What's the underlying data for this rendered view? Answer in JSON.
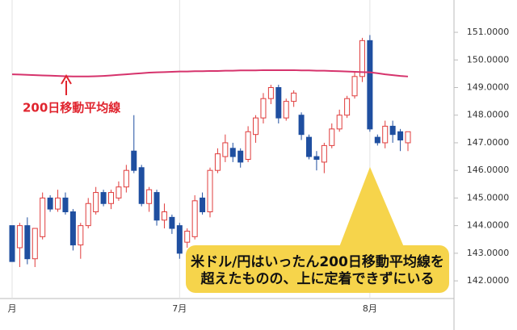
{
  "chart_data": {
    "type": "candlestick",
    "categories": [
      "月",
      null,
      null,
      null,
      null,
      null,
      null,
      null,
      null,
      null,
      null,
      null,
      null,
      null,
      null,
      null,
      null,
      null,
      null,
      null,
      null,
      null,
      "7月",
      null,
      null,
      null,
      null,
      null,
      null,
      null,
      null,
      null,
      null,
      null,
      null,
      null,
      null,
      null,
      null,
      null,
      null,
      null,
      null,
      null,
      null,
      null,
      null,
      "8月",
      null,
      null,
      null,
      null,
      null
    ],
    "open": [
      144.0,
      143.2,
      144.0,
      142.8,
      143.6,
      145.0,
      144.6,
      145.0,
      144.5,
      143.3,
      144.0,
      144.5,
      145.2,
      144.8,
      145.0,
      145.4,
      146.7,
      146.1,
      144.8,
      145.2,
      144.2,
      144.3,
      144.0,
      143.4,
      143.6,
      145.0,
      144.5,
      146.0,
      146.5,
      146.8,
      146.7,
      146.4,
      147.3,
      147.9,
      148.6,
      149.0,
      147.9,
      148.5,
      148.0,
      147.2,
      146.5,
      146.3,
      146.9,
      147.5,
      148.0,
      148.7,
      149.4,
      150.7,
      147.2,
      147.0,
      147.6,
      147.4,
      147.0
    ],
    "high": [
      144.0,
      144.1,
      144.3,
      143.9,
      145.2,
      145.1,
      145.3,
      145.2,
      144.6,
      144.1,
      145.0,
      145.4,
      145.3,
      145.3,
      145.6,
      146.2,
      148.0,
      146.2,
      145.4,
      145.3,
      144.8,
      144.4,
      144.1,
      143.9,
      145.1,
      145.2,
      146.1,
      146.8,
      147.3,
      147.0,
      146.8,
      147.6,
      148.0,
      148.8,
      149.1,
      149.1,
      148.6,
      148.9,
      148.1,
      147.3,
      146.7,
      147.0,
      147.7,
      148.2,
      148.7,
      149.6,
      150.8,
      150.9,
      147.3,
      147.8,
      147.8,
      147.5,
      147.4
    ],
    "low": [
      142.7,
      142.5,
      142.6,
      142.5,
      143.5,
      144.5,
      144.5,
      144.4,
      143.1,
      142.8,
      143.9,
      144.4,
      144.7,
      144.6,
      144.9,
      145.2,
      145.9,
      144.7,
      144.5,
      144.0,
      143.9,
      143.7,
      142.8,
      143.2,
      143.5,
      144.4,
      144.3,
      145.9,
      146.3,
      146.3,
      146.1,
      146.3,
      147.0,
      147.7,
      148.4,
      147.7,
      147.8,
      148.3,
      147.1,
      146.4,
      146.0,
      145.9,
      146.8,
      147.4,
      147.9,
      148.6,
      149.2,
      147.4,
      146.9,
      146.8,
      147.0,
      146.7,
      146.7
    ],
    "close": [
      142.7,
      144.0,
      142.8,
      143.9,
      145.0,
      144.6,
      145.0,
      144.5,
      143.3,
      144.0,
      144.8,
      145.2,
      144.8,
      145.2,
      145.4,
      146.0,
      146.0,
      144.8,
      145.3,
      144.2,
      144.5,
      143.9,
      143.0,
      143.8,
      144.9,
      144.5,
      146.0,
      146.6,
      147.0,
      146.5,
      146.3,
      147.4,
      147.9,
      148.6,
      149.0,
      147.9,
      148.5,
      148.8,
      147.3,
      146.5,
      146.4,
      146.9,
      147.5,
      148.0,
      148.6,
      149.4,
      150.7,
      147.5,
      147.0,
      147.6,
      147.3,
      147.1,
      147.4
    ],
    "up_color": "#e03c3c",
    "down_color": "#1f4fa0",
    "series": [
      {
        "name": "200日移動平均線",
        "color": "#d6336c",
        "values": [
          149.48,
          149.47,
          149.46,
          149.45,
          149.44,
          149.43,
          149.42,
          149.41,
          149.4,
          149.4,
          149.4,
          149.41,
          149.42,
          149.44,
          149.46,
          149.48,
          149.5,
          149.52,
          149.54,
          149.55,
          149.56,
          149.57,
          149.58,
          149.58,
          149.59,
          149.59,
          149.6,
          149.6,
          149.61,
          149.61,
          149.62,
          149.62,
          149.62,
          149.63,
          149.63,
          149.63,
          149.63,
          149.63,
          149.62,
          149.62,
          149.61,
          149.61,
          149.6,
          149.59,
          149.58,
          149.57,
          149.56,
          149.55,
          149.52,
          149.48,
          149.45,
          149.42,
          149.4
        ]
      }
    ],
    "annotation": [
      "米ドル/円はいったん200日移動平均線を",
      "超えたものの、上に定着できずにいる"
    ],
    "ylim": [
      141.36,
      152.17
    ],
    "yticks": [
      {
        "value": 142,
        "label": "142.0000"
      },
      {
        "value": 143,
        "label": "143.0000"
      },
      {
        "value": 144,
        "label": "144.0000"
      },
      {
        "value": 145,
        "label": "145.0000"
      },
      {
        "value": 146,
        "label": "146.0000"
      },
      {
        "value": 147,
        "label": "147.0000"
      },
      {
        "value": 148,
        "label": "148.0000"
      },
      {
        "value": 149,
        "label": "149.0000"
      },
      {
        "value": 150,
        "label": "150.0000"
      },
      {
        "value": 151,
        "label": "151.0000"
      }
    ]
  }
}
